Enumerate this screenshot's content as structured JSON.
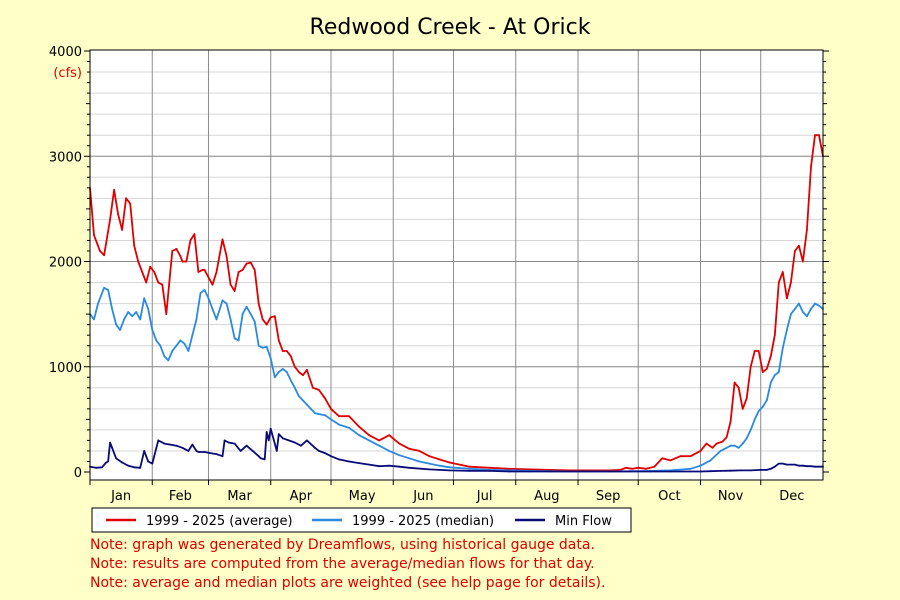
{
  "colors": {
    "background": "#ffffc8",
    "plot_background": "#ffffff",
    "average": "#e00000",
    "median": "#2a8ae0",
    "min_flow": "#0a0a78",
    "note_text": "#e00000"
  },
  "notes": [
    "Note: graph was generated by Dreamflows, using historical gauge data.",
    "Note: results are computed from the average/median flows for that day.",
    "Note: average and median plots are weighted (see help page for details)."
  ],
  "chart_data": {
    "type": "line",
    "title": "Redwood Creek - At Orick",
    "ylabel": "(cfs)",
    "xlabel": "",
    "ylim": [
      0,
      4000
    ],
    "xlim": [
      1,
      366
    ],
    "y_ticks": [
      0,
      1000,
      2000,
      3000,
      4000
    ],
    "y_tick_labels": [
      "0",
      "1000",
      "2000",
      "3000",
      "4000"
    ],
    "months": [
      "Jan",
      "Feb",
      "Mar",
      "Apr",
      "May",
      "Jun",
      "Jul",
      "Aug",
      "Sep",
      "Oct",
      "Nov",
      "Dec"
    ],
    "month_starts": [
      1,
      32,
      60,
      91,
      121,
      152,
      182,
      213,
      244,
      274,
      305,
      335
    ],
    "grid": true,
    "legend_position": "bottom",
    "series": [
      {
        "name": "1999 - 2025 (average)",
        "x": [
          1,
          3,
          6,
          8,
          11,
          13,
          15,
          17,
          19,
          21,
          23,
          25,
          27,
          29,
          31,
          33,
          35,
          37,
          39,
          41,
          42,
          44,
          46,
          47,
          49,
          51,
          53,
          55,
          57,
          58,
          60,
          62,
          64,
          67,
          69,
          71,
          73,
          75,
          77,
          79,
          81,
          83,
          85,
          87,
          89,
          91,
          93,
          95,
          97,
          99,
          101,
          103,
          105,
          107,
          109,
          112,
          115,
          118,
          121,
          125,
          130,
          135,
          140,
          145,
          150,
          155,
          160,
          165,
          170,
          175,
          180,
          190,
          200,
          210,
          220,
          230,
          240,
          250,
          260,
          265,
          268,
          271,
          274,
          278,
          282,
          286,
          290,
          295,
          300,
          305,
          308,
          311,
          313,
          316,
          318,
          320,
          322,
          324,
          326,
          328,
          330,
          332,
          334,
          336,
          338,
          340,
          342,
          344,
          346,
          348,
          350,
          352,
          354,
          356,
          358,
          360,
          362,
          364,
          366
        ],
        "values": [
          2700,
          2250,
          2100,
          2060,
          2400,
          2680,
          2450,
          2300,
          2600,
          2550,
          2150,
          2000,
          1900,
          1800,
          1950,
          1900,
          1800,
          1780,
          1500,
          1900,
          2100,
          2120,
          2050,
          2000,
          2000,
          2200,
          2260,
          1900,
          1920,
          1920,
          1850,
          1780,
          1900,
          2210,
          2050,
          1780,
          1720,
          1900,
          1920,
          1980,
          1990,
          1920,
          1600,
          1450,
          1400,
          1470,
          1480,
          1250,
          1150,
          1150,
          1100,
          1000,
          950,
          920,
          970,
          800,
          780,
          700,
          600,
          530,
          530,
          430,
          350,
          300,
          350,
          270,
          220,
          200,
          150,
          120,
          90,
          50,
          40,
          30,
          25,
          20,
          15,
          15,
          15,
          20,
          40,
          30,
          40,
          30,
          50,
          130,
          110,
          150,
          150,
          200,
          270,
          230,
          270,
          290,
          330,
          480,
          850,
          800,
          600,
          700,
          1000,
          1150,
          1150,
          950,
          980,
          1100,
          1300,
          1800,
          1900,
          1650,
          1800,
          2100,
          2150,
          2000,
          2300,
          2900,
          3200,
          3200,
          3000
        ],
        "color": "#e00000"
      },
      {
        "name": "1999 - 2025 (median)",
        "x": [
          1,
          3,
          5,
          8,
          10,
          12,
          14,
          16,
          18,
          20,
          22,
          24,
          26,
          28,
          30,
          32,
          34,
          36,
          38,
          40,
          42,
          44,
          46,
          48,
          50,
          52,
          54,
          56,
          58,
          60,
          62,
          64,
          67,
          69,
          71,
          73,
          75,
          77,
          79,
          81,
          83,
          85,
          87,
          89,
          91,
          93,
          95,
          97,
          99,
          101,
          103,
          105,
          107,
          109,
          111,
          113,
          115,
          118,
          121,
          125,
          130,
          135,
          140,
          145,
          150,
          155,
          160,
          165,
          170,
          175,
          180,
          190,
          200,
          210,
          220,
          230,
          240,
          250,
          260,
          270,
          280,
          290,
          300,
          305,
          310,
          315,
          318,
          320,
          322,
          324,
          326,
          328,
          330,
          332,
          334,
          336,
          338,
          340,
          342,
          344,
          346,
          348,
          350,
          352,
          354,
          356,
          358,
          360,
          362,
          364,
          366
        ],
        "values": [
          1500,
          1450,
          1600,
          1750,
          1730,
          1550,
          1400,
          1350,
          1450,
          1520,
          1480,
          1520,
          1450,
          1650,
          1550,
          1350,
          1250,
          1200,
          1100,
          1060,
          1150,
          1200,
          1250,
          1220,
          1150,
          1300,
          1450,
          1700,
          1730,
          1650,
          1550,
          1450,
          1630,
          1600,
          1450,
          1270,
          1250,
          1500,
          1570,
          1500,
          1430,
          1200,
          1180,
          1190,
          1080,
          900,
          950,
          980,
          950,
          870,
          800,
          720,
          680,
          640,
          600,
          560,
          550,
          540,
          500,
          450,
          420,
          350,
          300,
          250,
          200,
          160,
          130,
          100,
          80,
          60,
          45,
          30,
          20,
          15,
          10,
          8,
          5,
          5,
          5,
          8,
          10,
          15,
          30,
          60,
          110,
          200,
          230,
          250,
          250,
          230,
          270,
          320,
          400,
          500,
          580,
          620,
          680,
          850,
          920,
          950,
          1180,
          1350,
          1500,
          1550,
          1600,
          1520,
          1480,
          1550,
          1600,
          1580,
          1550
        ],
        "color": "#2a8ae0"
      },
      {
        "name": "Min Flow",
        "x": [
          1,
          4,
          7,
          9,
          10,
          11,
          12,
          14,
          17,
          20,
          23,
          26,
          28,
          29,
          30,
          32,
          35,
          37,
          38,
          41,
          44,
          47,
          50,
          52,
          54,
          55,
          58,
          61,
          64,
          67,
          68,
          70,
          73,
          76,
          79,
          82,
          85,
          86,
          88,
          89,
          90,
          91,
          94,
          95,
          97,
          100,
          103,
          106,
          109,
          113,
          115,
          118,
          121,
          125,
          130,
          135,
          140,
          145,
          150,
          155,
          160,
          170,
          180,
          190,
          200,
          210,
          220,
          230,
          240,
          250,
          260,
          270,
          280,
          290,
          300,
          305,
          310,
          315,
          320,
          325,
          330,
          335,
          338,
          340,
          342,
          344,
          346,
          348,
          350,
          352,
          354,
          356,
          358,
          360,
          362,
          364,
          366
        ],
        "values": [
          50,
          40,
          45,
          90,
          100,
          280,
          230,
          130,
          90,
          60,
          45,
          40,
          200,
          150,
          100,
          80,
          300,
          280,
          270,
          260,
          250,
          230,
          200,
          260,
          200,
          190,
          190,
          180,
          170,
          150,
          300,
          280,
          270,
          200,
          250,
          200,
          150,
          130,
          120,
          380,
          300,
          410,
          200,
          360,
          320,
          300,
          280,
          250,
          300,
          230,
          200,
          180,
          150,
          120,
          100,
          85,
          70,
          55,
          60,
          50,
          40,
          25,
          15,
          10,
          10,
          5,
          5,
          5,
          5,
          5,
          5,
          5,
          5,
          5,
          5,
          5,
          8,
          10,
          12,
          15,
          15,
          20,
          20,
          30,
          50,
          80,
          80,
          70,
          70,
          70,
          60,
          60,
          55,
          55,
          50,
          50,
          50
        ],
        "color": "#0a0a78"
      }
    ]
  }
}
